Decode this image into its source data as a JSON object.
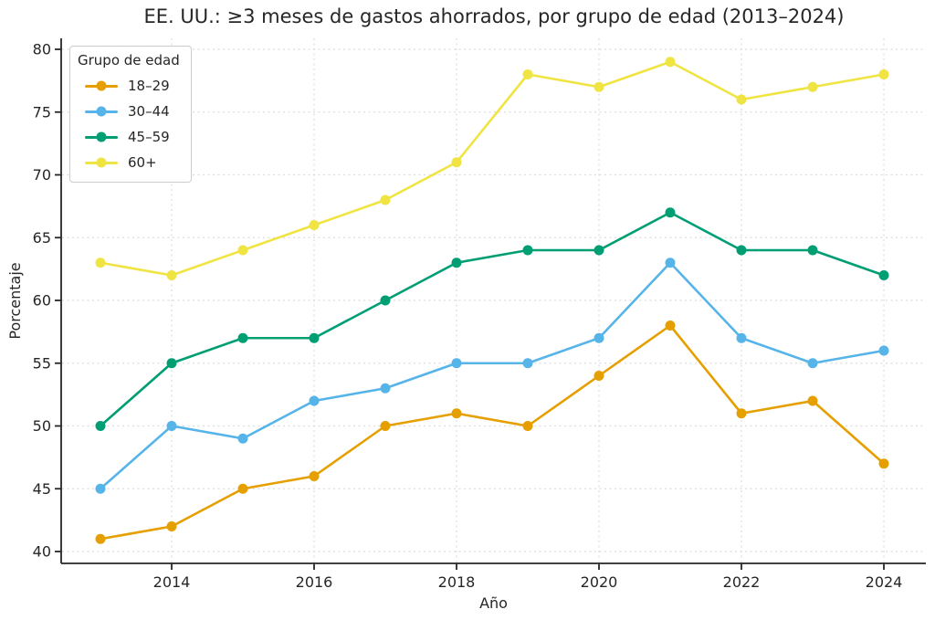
{
  "chart_data": {
    "type": "line",
    "title": "EE. UU.: ≥3 meses de gastos ahorrados, por grupo de edad (2013–2024)",
    "xlabel": "Año",
    "ylabel": "Porcentaje",
    "legend_title": "Grupo de edad",
    "legend_position": "upper-left",
    "grid": true,
    "grid_color": "#dcdcdc",
    "spine_color": "#262626",
    "x": [
      2013,
      2014,
      2015,
      2016,
      2017,
      2018,
      2019,
      2020,
      2021,
      2022,
      2023,
      2024
    ],
    "xlim": [
      2013,
      2024
    ],
    "ylim": [
      40,
      80
    ],
    "xticks": [
      2014,
      2016,
      2018,
      2020,
      2022,
      2024
    ],
    "yticks": [
      40,
      45,
      50,
      55,
      60,
      65,
      70,
      75,
      80
    ],
    "series": [
      {
        "name": "18–29",
        "color": "#E69F00",
        "values": [
          41,
          42,
          45,
          46,
          50,
          51,
          50,
          54,
          58,
          51,
          52,
          47
        ]
      },
      {
        "name": "30–44",
        "color": "#56B4E9",
        "values": [
          45,
          50,
          49,
          52,
          53,
          55,
          55,
          57,
          63,
          57,
          55,
          56
        ]
      },
      {
        "name": "45–59",
        "color": "#009E73",
        "values": [
          50,
          55,
          57,
          57,
          60,
          63,
          64,
          64,
          67,
          64,
          64,
          62
        ]
      },
      {
        "name": "60+",
        "color": "#F0E442",
        "values": [
          63,
          62,
          64,
          66,
          68,
          71,
          78,
          77,
          79,
          76,
          77,
          78
        ]
      }
    ]
  }
}
